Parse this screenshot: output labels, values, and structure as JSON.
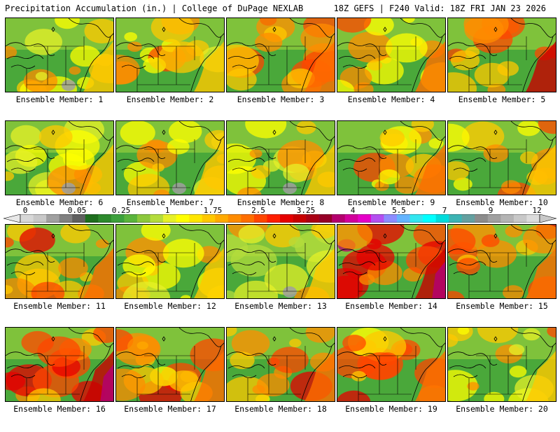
{
  "header": {
    "left": "Precipitation Accumulation (in.) | College of DuPage NEXLAB",
    "right": "18Z GEFS | F240 Valid: 18Z FRI JAN 23 2026"
  },
  "legend": {
    "labels": [
      "0",
      "0.05",
      "0.25",
      "1",
      "1.75",
      "2.5",
      "3.25",
      "4",
      "5.5",
      "7",
      "9",
      "12"
    ],
    "colors": [
      "#d8d8d8",
      "#c8c8c8",
      "#a0a0a0",
      "#808080",
      "#606060",
      "#1e6e1e",
      "#2d8a2d",
      "#3ca03c",
      "#5ab43c",
      "#8cc83c",
      "#b4dc3c",
      "#e6f028",
      "#ffff00",
      "#ffe600",
      "#ffc800",
      "#ffaa00",
      "#ff8c00",
      "#ff6e00",
      "#ff4600",
      "#ff1e00",
      "#e60000",
      "#c80000",
      "#aa0014",
      "#960028",
      "#b4006e",
      "#d2009b",
      "#e600c8",
      "#b450f0",
      "#8c8cff",
      "#64b4ff",
      "#32e6f0",
      "#00ffff",
      "#00dcdc",
      "#3cb4b4",
      "#64a0a0",
      "#8c8c8c",
      "#a0a0a0",
      "#b4b4b4",
      "#c8c8c8",
      "#dcdcdc"
    ]
  },
  "members": [
    {
      "label": "Ensemble Member: 1",
      "wet": 0.3
    },
    {
      "label": "Ensemble Member: 2",
      "wet": 0.45
    },
    {
      "label": "Ensemble Member: 3",
      "wet": 0.6
    },
    {
      "label": "Ensemble Member: 4",
      "wet": 0.5
    },
    {
      "label": "Ensemble Member: 5",
      "wet": 0.75
    },
    {
      "label": "Ensemble Member: 6",
      "wet": 0.25
    },
    {
      "label": "Ensemble Member: 7",
      "wet": 0.35
    },
    {
      "label": "Ensemble Member: 8",
      "wet": 0.3
    },
    {
      "label": "Ensemble Member: 9",
      "wet": 0.5
    },
    {
      "label": "Ensemble Member: 10",
      "wet": 0.45
    },
    {
      "label": "Ensemble Member: 11",
      "wet": 0.65
    },
    {
      "label": "Ensemble Member: 12",
      "wet": 0.45
    },
    {
      "label": "Ensemble Member: 13",
      "wet": 0.15
    },
    {
      "label": "Ensemble Member: 14",
      "wet": 0.9
    },
    {
      "label": "Ensemble Member: 15",
      "wet": 0.7
    },
    {
      "label": "Ensemble Member: 16",
      "wet": 0.8
    },
    {
      "label": "Ensemble Member: 17",
      "wet": 0.6
    },
    {
      "label": "Ensemble Member: 18",
      "wet": 0.65
    },
    {
      "label": "Ensemble Member: 19",
      "wet": 0.6
    },
    {
      "label": "Ensemble Member: 20",
      "wet": 0.4
    }
  ]
}
